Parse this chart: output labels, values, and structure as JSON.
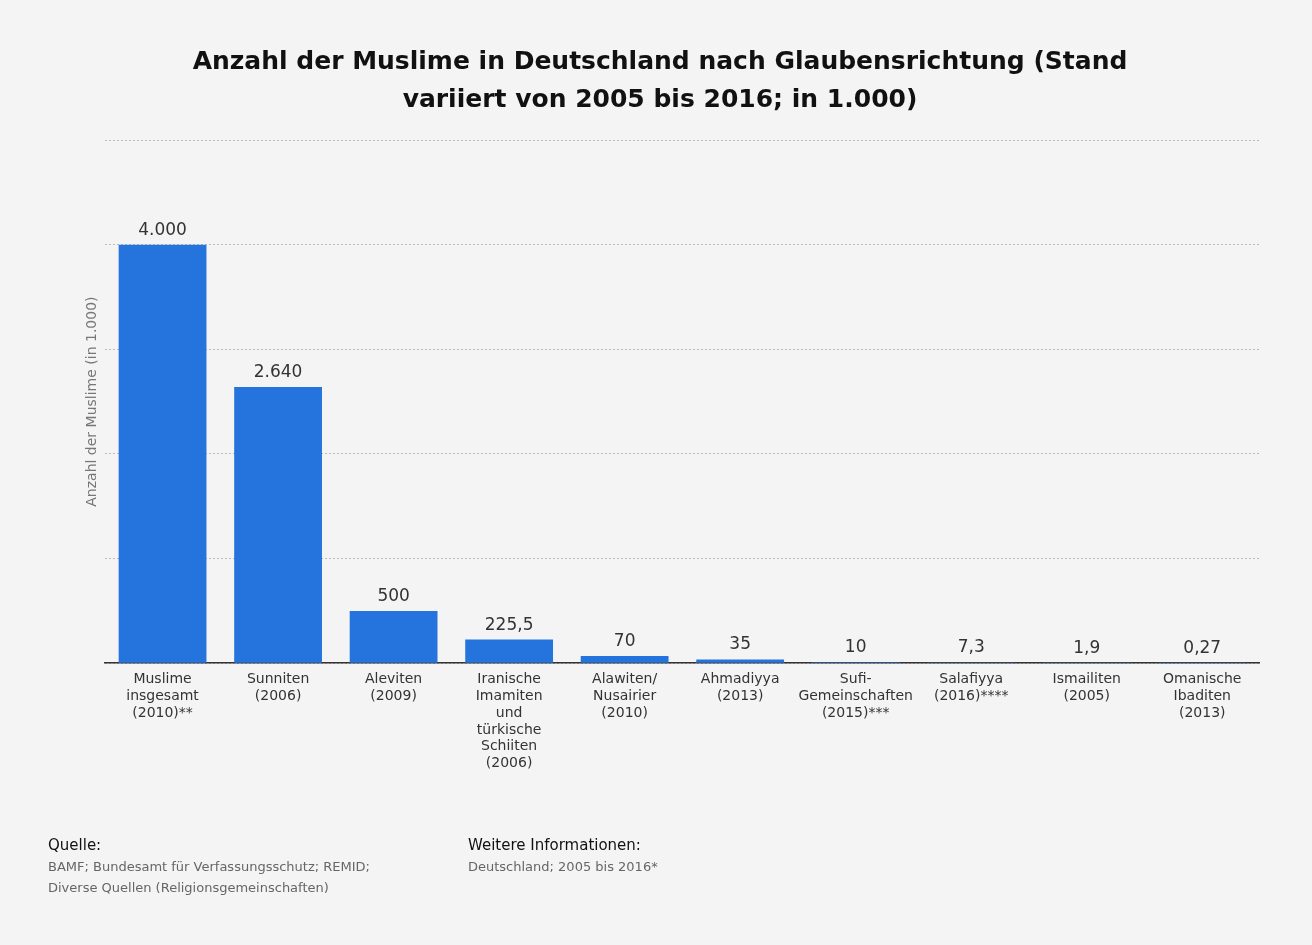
{
  "chart_data": {
    "type": "bar",
    "title": "Anzahl der Muslime in Deutschland nach Glaubensrichtung (Stand variiert von 2005 bis 2016; in 1.000)",
    "ylabel": "Anzahl der Muslime (in 1.000)",
    "categories": [
      "Muslime insgesamt (2010)**",
      "Sunniten (2006)",
      "Aleviten (2009)",
      "Iranische Imamiten und türkische Schiiten (2006)",
      "Alawiten/ Nusairier (2010)",
      "Ahmadiyya (2013)",
      "Sufi-Gemeinschaften (2015)***",
      "Salafiyya (2016)****",
      "Ismailiten (2005)",
      "Omanische Ibaditen (2013)"
    ],
    "values": [
      4000,
      2640,
      500,
      225.5,
      70,
      35,
      10,
      7.3,
      1.9,
      0.27
    ],
    "value_labels": [
      "4.000",
      "2.640",
      "500",
      "225,5",
      "70",
      "35",
      "10",
      "7,3",
      "1,9",
      "0,27"
    ],
    "color": "#2574de",
    "ylim": [
      0,
      5000
    ],
    "yticks": [
      {
        "value": 0,
        "label": null
      },
      {
        "value": 1000,
        "label": null
      },
      {
        "value": 2000,
        "label": null
      },
      {
        "value": 3000,
        "label": null
      },
      {
        "value": 4000,
        "label": null
      },
      {
        "value": 5000,
        "label": null
      }
    ],
    "grid": "y",
    "tick_labels": "x",
    "legend": false,
    "annotations": [
      "Quelle:",
      "BAMF; Bundesamt für Verfassungsschutz; REMID; Diverse Quellen (Religionsgemeinschaften)",
      "Weitere Informationen:",
      "Deutschland; 2005 bis 2016*"
    ]
  }
}
